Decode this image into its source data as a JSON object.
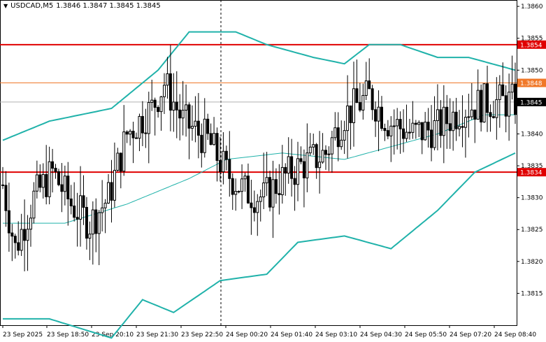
{
  "header": {
    "symbol_tf": "USDCAD,M5",
    "quote": "1.3846 1.3847 1.3845 1.3845",
    "menu_icon": "down-triangle-icon"
  },
  "colors": {
    "background": "#ffffff",
    "candle": "#000000",
    "bollinger": "#20b2aa",
    "level_lines": "#e00000",
    "orange_level": "#f07828",
    "current_price_line": "#b0b0b0"
  },
  "chart_data": {
    "type": "candlestick",
    "symbol": "USDCAD",
    "timeframe": "M5",
    "ylim": [
      1.381,
      1.3861
    ],
    "y_ticks": [
      "1.3860",
      "1.3855",
      "1.3850",
      "1.3845",
      "1.3840",
      "1.3835",
      "1.3830",
      "1.3825",
      "1.3820",
      "1.3815"
    ],
    "x_ticks": [
      "23 Sep 2025",
      "23 Sep 18:50",
      "23 Sep 20:10",
      "23 Sep 21:30",
      "23 Sep 22:50",
      "24 Sep 00:20",
      "24 Sep 01:40",
      "24 Sep 03:10",
      "24 Sep 04:30",
      "24 Sep 05:50",
      "24 Sep 07:20",
      "24 Sep 08:40"
    ],
    "horizontal_levels": [
      {
        "value": 1.3854,
        "label": "1.3854",
        "kind": "red"
      },
      {
        "value": 1.3848,
        "label": "1.3848",
        "kind": "orange"
      },
      {
        "value": 1.3834,
        "label": "1.3834",
        "kind": "red"
      }
    ],
    "current_price": {
      "value": 1.3845,
      "label": "1.3845"
    },
    "vertical_marker_index": 26,
    "n_candles": 166,
    "price_path": [
      [
        0,
        1.3832
      ],
      [
        4,
        1.3822
      ],
      [
        10,
        1.383
      ],
      [
        16,
        1.3834
      ],
      [
        22,
        1.3829
      ],
      [
        28,
        1.3826
      ],
      [
        34,
        1.383
      ],
      [
        40,
        1.384
      ],
      [
        48,
        1.3844
      ],
      [
        52,
        1.3848
      ],
      [
        58,
        1.3842
      ],
      [
        66,
        1.3839
      ],
      [
        72,
        1.3834
      ],
      [
        78,
        1.3831
      ],
      [
        84,
        1.383
      ],
      [
        90,
        1.3833
      ],
      [
        96,
        1.3835
      ],
      [
        104,
        1.3837
      ],
      [
        110,
        1.3843
      ],
      [
        118,
        1.3846
      ],
      [
        124,
        1.3842
      ],
      [
        132,
        1.384
      ],
      [
        140,
        1.3841
      ],
      [
        148,
        1.3844
      ],
      [
        156,
        1.3845
      ],
      [
        165,
        1.3845
      ]
    ],
    "bollinger": {
      "upper": [
        [
          0,
          1.3839
        ],
        [
          15,
          1.3842
        ],
        [
          35,
          1.3844
        ],
        [
          50,
          1.385
        ],
        [
          60,
          1.3856
        ],
        [
          75,
          1.3856
        ],
        [
          85,
          1.3854
        ],
        [
          100,
          1.3852
        ],
        [
          110,
          1.3851
        ],
        [
          118,
          1.3854
        ],
        [
          128,
          1.3854
        ],
        [
          140,
          1.3852
        ],
        [
          150,
          1.3852
        ],
        [
          165,
          1.385
        ]
      ],
      "middle": [
        [
          0,
          1.3826
        ],
        [
          20,
          1.3826
        ],
        [
          40,
          1.3829
        ],
        [
          60,
          1.3833
        ],
        [
          72,
          1.3836
        ],
        [
          90,
          1.3837
        ],
        [
          110,
          1.3836
        ],
        [
          125,
          1.3838
        ],
        [
          140,
          1.384
        ],
        [
          155,
          1.3843
        ],
        [
          165,
          1.3843
        ]
      ],
      "lower": [
        [
          0,
          1.3811
        ],
        [
          15,
          1.3811
        ],
        [
          35,
          1.3808
        ],
        [
          45,
          1.3814
        ],
        [
          55,
          1.3812
        ],
        [
          70,
          1.3817
        ],
        [
          85,
          1.3818
        ],
        [
          95,
          1.3823
        ],
        [
          110,
          1.3824
        ],
        [
          125,
          1.3822
        ],
        [
          140,
          1.3828
        ],
        [
          152,
          1.3834
        ],
        [
          165,
          1.3837
        ]
      ]
    }
  }
}
